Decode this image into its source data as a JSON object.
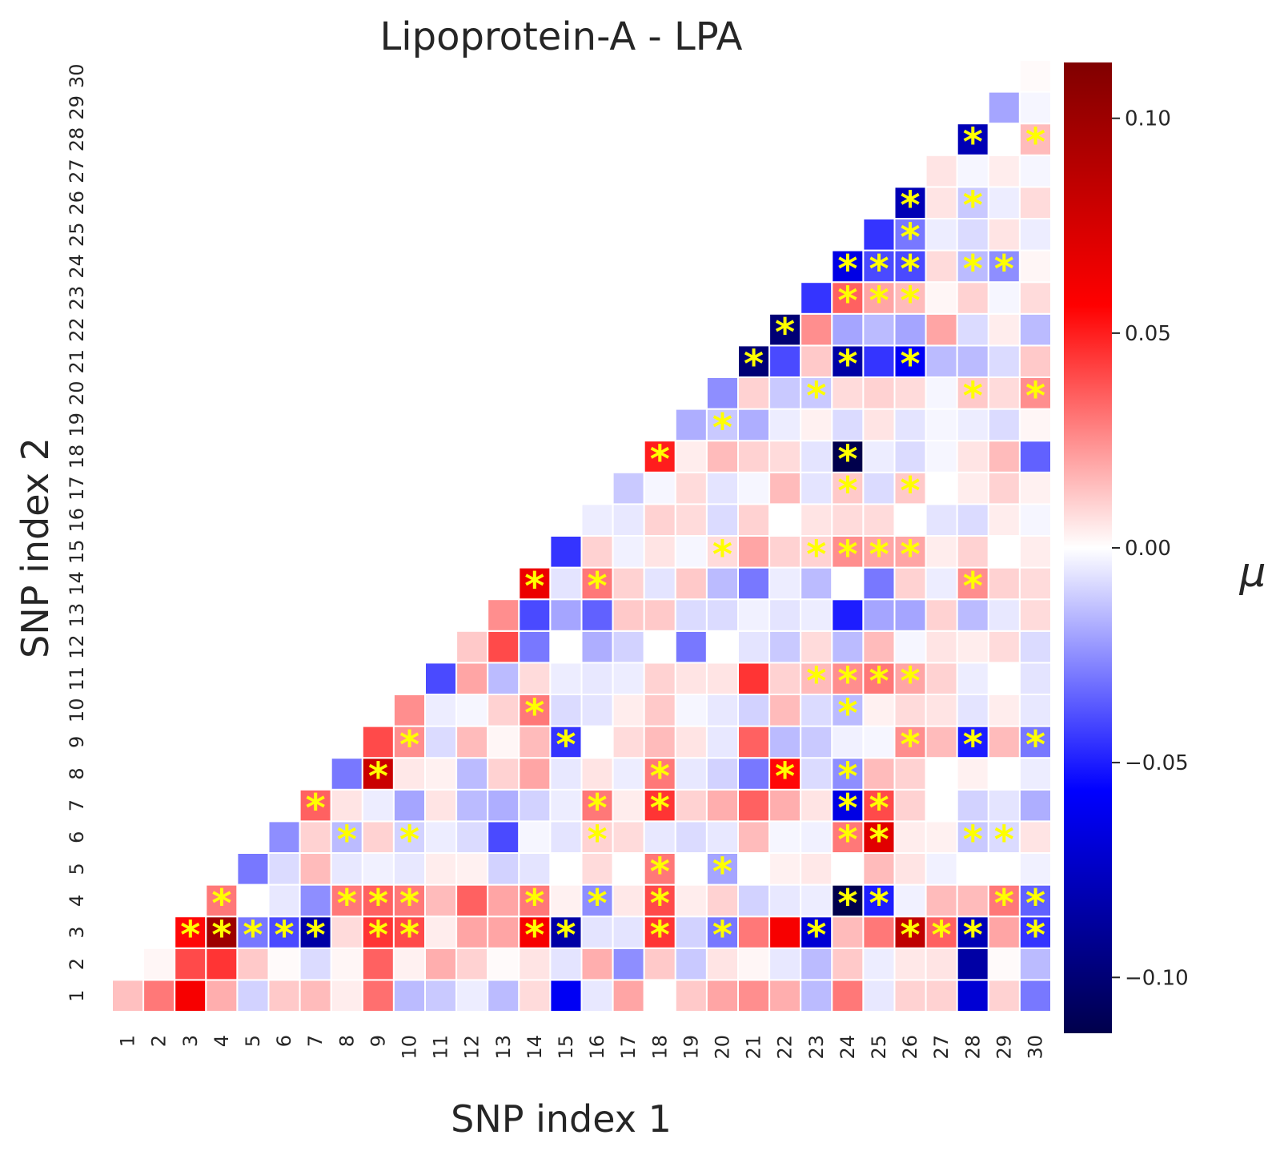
{
  "chart_data": {
    "type": "heatmap",
    "title": "Lipoprotein-A - LPA",
    "xlabel": "SNP index 1",
    "ylabel": "SNP index 2",
    "colorbar_label": "μ",
    "colormap": "seismic",
    "vlim": [
      -0.113,
      0.113
    ],
    "colorbar_ticks": [
      "0.10",
      "0.05",
      "0.00",
      "−0.05",
      "−0.10"
    ],
    "colorbar_tick_values": [
      0.1,
      0.05,
      0.0,
      -0.05,
      -0.1
    ],
    "x_tick_labels": [
      "1",
      "2",
      "3",
      "4",
      "5",
      "6",
      "7",
      "8",
      "9",
      "10",
      "11",
      "12",
      "13",
      "14",
      "15",
      "16",
      "17",
      "18",
      "19",
      "20",
      "21",
      "22",
      "23",
      "24",
      "25",
      "26",
      "27",
      "28",
      "29",
      "30"
    ],
    "y_tick_labels": [
      "1",
      "2",
      "3",
      "4",
      "5",
      "6",
      "7",
      "8",
      "9",
      "10",
      "11",
      "12",
      "13",
      "14",
      "15",
      "16",
      "17",
      "18",
      "19",
      "20",
      "21",
      "22",
      "23",
      "24",
      "25",
      "26",
      "27",
      "28",
      "29",
      "30"
    ],
    "star_symbol": "*",
    "values": [
      [
        0.014,
        0.03,
        0.06,
        0.018,
        -0.01,
        0.012,
        0.015,
        0.004,
        0.032,
        -0.015,
        -0.012,
        -0.004,
        -0.015,
        0.008,
        -0.06,
        -0.005,
        0.02,
        0.0,
        0.012,
        0.02,
        0.025,
        0.018,
        -0.015,
        0.03,
        -0.005,
        0.01,
        0.01,
        -0.07,
        0.01,
        -0.03
      ],
      [
        null,
        0.002,
        0.04,
        0.045,
        0.012,
        0.001,
        -0.008,
        0.002,
        0.035,
        0.003,
        0.018,
        0.01,
        0.001,
        0.006,
        -0.006,
        0.018,
        -0.025,
        0.012,
        -0.012,
        0.006,
        0.002,
        -0.005,
        -0.015,
        0.012,
        -0.004,
        0.005,
        0.006,
        -0.085,
        0.001,
        -0.015
      ],
      [
        null,
        null,
        0.055,
        0.1,
        -0.03,
        -0.04,
        -0.085,
        0.008,
        0.045,
        0.04,
        0.004,
        0.02,
        0.02,
        0.06,
        -0.085,
        -0.006,
        -0.006,
        0.045,
        -0.01,
        -0.03,
        0.03,
        0.06,
        -0.07,
        0.015,
        0.03,
        0.085,
        0.035,
        -0.08,
        0.02,
        -0.045
      ],
      [
        null,
        null,
        null,
        0.03,
        0.0,
        -0.005,
        -0.025,
        0.03,
        0.035,
        0.03,
        0.015,
        0.035,
        0.02,
        0.03,
        0.003,
        -0.025,
        0.005,
        0.04,
        0.004,
        0.01,
        -0.01,
        -0.005,
        -0.004,
        -0.113,
        -0.05,
        -0.003,
        0.015,
        0.015,
        0.03,
        -0.035
      ],
      [
        null,
        null,
        null,
        null,
        -0.03,
        -0.008,
        0.015,
        -0.005,
        -0.003,
        -0.005,
        0.004,
        0.003,
        -0.01,
        -0.006,
        0.0,
        0.008,
        0.0,
        0.03,
        0.0,
        -0.02,
        0.0,
        0.003,
        0.005,
        0.0,
        0.015,
        0.006,
        -0.003,
        0.0,
        0.0,
        -0.003
      ],
      [
        null,
        null,
        null,
        null,
        null,
        -0.025,
        0.01,
        -0.015,
        0.01,
        -0.01,
        -0.004,
        -0.008,
        -0.04,
        -0.002,
        -0.006,
        0.01,
        0.008,
        -0.005,
        -0.008,
        -0.005,
        0.015,
        -0.002,
        -0.003,
        0.03,
        0.07,
        0.004,
        0.003,
        -0.012,
        -0.008,
        0.006
      ],
      [
        null,
        null,
        null,
        null,
        null,
        null,
        0.035,
        0.006,
        -0.004,
        -0.02,
        0.006,
        -0.015,
        -0.018,
        -0.01,
        -0.004,
        0.03,
        0.004,
        0.045,
        0.01,
        0.018,
        0.035,
        0.018,
        0.006,
        -0.065,
        0.04,
        0.01,
        0.0,
        -0.01,
        -0.006,
        -0.018
      ],
      [
        null,
        null,
        null,
        null,
        null,
        null,
        null,
        -0.03,
        0.08,
        0.005,
        0.003,
        -0.015,
        0.01,
        0.02,
        -0.005,
        0.006,
        -0.004,
        0.03,
        -0.005,
        -0.01,
        -0.03,
        0.055,
        -0.008,
        -0.025,
        0.015,
        0.01,
        0.0,
        0.003,
        0.0,
        -0.004
      ],
      [
        null,
        null,
        null,
        null,
        null,
        null,
        null,
        null,
        0.04,
        0.025,
        -0.008,
        0.015,
        0.002,
        0.015,
        -0.045,
        0.0,
        0.008,
        0.015,
        0.006,
        -0.005,
        0.035,
        -0.015,
        -0.012,
        -0.003,
        -0.002,
        0.025,
        0.015,
        -0.05,
        0.015,
        -0.03
      ],
      [
        null,
        null,
        null,
        null,
        null,
        null,
        null,
        null,
        null,
        0.025,
        -0.004,
        -0.002,
        0.01,
        0.03,
        -0.008,
        -0.006,
        0.004,
        0.012,
        -0.002,
        -0.005,
        -0.01,
        0.015,
        -0.008,
        -0.015,
        0.003,
        0.008,
        0.006,
        -0.006,
        0.004,
        -0.005
      ],
      [
        null,
        null,
        null,
        null,
        null,
        null,
        null,
        null,
        null,
        null,
        -0.04,
        0.02,
        -0.015,
        0.008,
        -0.004,
        -0.005,
        -0.004,
        0.01,
        0.006,
        0.006,
        0.045,
        0.01,
        0.015,
        0.025,
        0.03,
        0.02,
        0.01,
        -0.004,
        0.0,
        -0.006
      ],
      [
        null,
        null,
        null,
        null,
        null,
        null,
        null,
        null,
        null,
        null,
        null,
        0.012,
        0.04,
        -0.03,
        0.0,
        -0.018,
        -0.01,
        0.0,
        -0.03,
        0.0,
        -0.006,
        -0.012,
        0.008,
        -0.015,
        0.015,
        -0.002,
        0.006,
        0.004,
        0.008,
        -0.008
      ],
      [
        null,
        null,
        null,
        null,
        null,
        null,
        null,
        null,
        null,
        null,
        null,
        null,
        0.025,
        -0.04,
        -0.02,
        -0.035,
        0.012,
        0.012,
        -0.008,
        -0.008,
        -0.003,
        -0.006,
        -0.004,
        -0.05,
        -0.02,
        -0.02,
        0.01,
        -0.015,
        -0.005,
        0.008
      ],
      [
        null,
        null,
        null,
        null,
        null,
        null,
        null,
        null,
        null,
        null,
        null,
        null,
        null,
        0.065,
        -0.006,
        0.03,
        0.01,
        -0.006,
        0.012,
        -0.015,
        -0.03,
        -0.004,
        -0.015,
        0.0,
        -0.03,
        0.01,
        -0.004,
        0.025,
        0.01,
        0.008
      ],
      [
        null,
        null,
        null,
        null,
        null,
        null,
        null,
        null,
        null,
        null,
        null,
        null,
        null,
        null,
        -0.045,
        0.01,
        -0.003,
        0.006,
        -0.002,
        0.008,
        0.02,
        0.01,
        0.01,
        0.025,
        0.02,
        0.02,
        0.004,
        0.01,
        0.0,
        0.004
      ],
      [
        null,
        null,
        null,
        null,
        null,
        null,
        null,
        null,
        null,
        null,
        null,
        null,
        null,
        null,
        null,
        -0.004,
        -0.005,
        0.01,
        0.008,
        -0.008,
        0.01,
        0.0,
        0.006,
        0.008,
        0.008,
        0.0,
        -0.006,
        -0.008,
        0.004,
        -0.002
      ],
      [
        null,
        null,
        null,
        null,
        null,
        null,
        null,
        null,
        null,
        null,
        null,
        null,
        null,
        null,
        null,
        null,
        -0.012,
        -0.002,
        0.008,
        -0.006,
        -0.002,
        0.015,
        -0.006,
        0.012,
        -0.008,
        0.012,
        0.0,
        0.004,
        0.01,
        0.003
      ],
      [
        null,
        null,
        null,
        null,
        null,
        null,
        null,
        null,
        null,
        null,
        null,
        null,
        null,
        null,
        null,
        null,
        null,
        0.05,
        0.004,
        0.015,
        0.01,
        0.008,
        -0.006,
        -0.113,
        -0.004,
        -0.008,
        -0.002,
        0.006,
        0.015,
        -0.035
      ],
      [
        null,
        null,
        null,
        null,
        null,
        null,
        null,
        null,
        null,
        null,
        null,
        null,
        null,
        null,
        null,
        null,
        null,
        null,
        -0.018,
        -0.012,
        -0.018,
        -0.004,
        0.003,
        -0.008,
        0.006,
        -0.006,
        -0.002,
        -0.004,
        -0.008,
        0.002
      ],
      [
        null,
        null,
        null,
        null,
        null,
        null,
        null,
        null,
        null,
        null,
        null,
        null,
        null,
        null,
        null,
        null,
        null,
        null,
        null,
        -0.025,
        0.01,
        -0.012,
        -0.012,
        0.008,
        0.01,
        0.008,
        -0.002,
        0.012,
        0.008,
        0.025
      ],
      [
        null,
        null,
        null,
        null,
        null,
        null,
        null,
        null,
        null,
        null,
        null,
        null,
        null,
        null,
        null,
        null,
        null,
        null,
        null,
        null,
        -0.1,
        -0.04,
        0.012,
        -0.085,
        -0.045,
        -0.06,
        -0.015,
        -0.015,
        -0.008,
        0.012
      ],
      [
        null,
        null,
        null,
        null,
        null,
        null,
        null,
        null,
        null,
        null,
        null,
        null,
        null,
        null,
        null,
        null,
        null,
        null,
        null,
        null,
        null,
        -0.1,
        0.025,
        -0.02,
        -0.015,
        -0.02,
        0.02,
        -0.008,
        0.004,
        -0.015
      ],
      [
        null,
        null,
        null,
        null,
        null,
        null,
        null,
        null,
        null,
        null,
        null,
        null,
        null,
        null,
        null,
        null,
        null,
        null,
        null,
        null,
        null,
        null,
        -0.045,
        0.035,
        0.02,
        0.015,
        0.002,
        0.01,
        -0.002,
        0.008
      ],
      [
        null,
        null,
        null,
        null,
        null,
        null,
        null,
        null,
        null,
        null,
        null,
        null,
        null,
        null,
        null,
        null,
        null,
        null,
        null,
        null,
        null,
        null,
        null,
        -0.065,
        -0.04,
        -0.04,
        0.008,
        -0.015,
        -0.025,
        0.002
      ],
      [
        null,
        null,
        null,
        null,
        null,
        null,
        null,
        null,
        null,
        null,
        null,
        null,
        null,
        null,
        null,
        null,
        null,
        null,
        null,
        null,
        null,
        null,
        null,
        null,
        -0.045,
        -0.03,
        -0.004,
        -0.008,
        0.006,
        -0.004
      ],
      [
        null,
        null,
        null,
        null,
        null,
        null,
        null,
        null,
        null,
        null,
        null,
        null,
        null,
        null,
        null,
        null,
        null,
        null,
        null,
        null,
        null,
        null,
        null,
        null,
        null,
        -0.08,
        0.006,
        -0.012,
        -0.004,
        0.008
      ],
      [
        null,
        null,
        null,
        null,
        null,
        null,
        null,
        null,
        null,
        null,
        null,
        null,
        null,
        null,
        null,
        null,
        null,
        null,
        null,
        null,
        null,
        null,
        null,
        null,
        null,
        null,
        0.006,
        -0.002,
        0.004,
        -0.002
      ],
      [
        null,
        null,
        null,
        null,
        null,
        null,
        null,
        null,
        null,
        null,
        null,
        null,
        null,
        null,
        null,
        null,
        null,
        null,
        null,
        null,
        null,
        null,
        null,
        null,
        null,
        null,
        null,
        -0.08,
        0.0,
        0.015
      ],
      [
        null,
        null,
        null,
        null,
        null,
        null,
        null,
        null,
        null,
        null,
        null,
        null,
        null,
        null,
        null,
        null,
        null,
        null,
        null,
        null,
        null,
        null,
        null,
        null,
        null,
        null,
        null,
        null,
        -0.02,
        -0.002
      ],
      [
        null,
        null,
        null,
        null,
        null,
        null,
        null,
        null,
        null,
        null,
        null,
        null,
        null,
        null,
        null,
        null,
        null,
        null,
        null,
        null,
        null,
        null,
        null,
        null,
        null,
        null,
        null,
        null,
        null,
        0.001
      ]
    ],
    "significant_cells": [
      [
        3,
        3
      ],
      [
        3,
        4
      ],
      [
        3,
        5
      ],
      [
        3,
        6
      ],
      [
        3,
        7
      ],
      [
        3,
        9
      ],
      [
        3,
        10
      ],
      [
        3,
        14
      ],
      [
        3,
        15
      ],
      [
        3,
        18
      ],
      [
        3,
        20
      ],
      [
        3,
        23
      ],
      [
        3,
        26
      ],
      [
        3,
        27
      ],
      [
        3,
        28
      ],
      [
        3,
        30
      ],
      [
        4,
        4
      ],
      [
        4,
        8
      ],
      [
        4,
        9
      ],
      [
        4,
        10
      ],
      [
        4,
        14
      ],
      [
        4,
        16
      ],
      [
        4,
        18
      ],
      [
        4,
        24
      ],
      [
        4,
        25
      ],
      [
        4,
        29
      ],
      [
        4,
        30
      ],
      [
        5,
        18
      ],
      [
        5,
        20
      ],
      [
        6,
        8
      ],
      [
        6,
        10
      ],
      [
        6,
        16
      ],
      [
        6,
        24
      ],
      [
        6,
        25
      ],
      [
        6,
        28
      ],
      [
        6,
        29
      ],
      [
        7,
        7
      ],
      [
        7,
        16
      ],
      [
        7,
        18
      ],
      [
        7,
        24
      ],
      [
        7,
        25
      ],
      [
        8,
        9
      ],
      [
        8,
        18
      ],
      [
        8,
        22
      ],
      [
        8,
        24
      ],
      [
        9,
        10
      ],
      [
        9,
        15
      ],
      [
        9,
        26
      ],
      [
        9,
        28
      ],
      [
        9,
        30
      ],
      [
        10,
        14
      ],
      [
        10,
        24
      ],
      [
        11,
        23
      ],
      [
        11,
        24
      ],
      [
        11,
        25
      ],
      [
        11,
        26
      ],
      [
        14,
        14
      ],
      [
        14,
        16
      ],
      [
        14,
        28
      ],
      [
        15,
        20
      ],
      [
        15,
        23
      ],
      [
        15,
        24
      ],
      [
        15,
        25
      ],
      [
        15,
        26
      ],
      [
        17,
        24
      ],
      [
        17,
        26
      ],
      [
        18,
        18
      ],
      [
        18,
        24
      ],
      [
        19,
        20
      ],
      [
        20,
        23
      ],
      [
        20,
        28
      ],
      [
        20,
        30
      ],
      [
        21,
        21
      ],
      [
        21,
        24
      ],
      [
        21,
        26
      ],
      [
        22,
        22
      ],
      [
        23,
        24
      ],
      [
        23,
        25
      ],
      [
        23,
        26
      ],
      [
        24,
        24
      ],
      [
        24,
        25
      ],
      [
        24,
        26
      ],
      [
        24,
        28
      ],
      [
        24,
        29
      ],
      [
        25,
        26
      ],
      [
        26,
        26
      ],
      [
        26,
        28
      ],
      [
        28,
        28
      ],
      [
        28,
        30
      ]
    ]
  }
}
